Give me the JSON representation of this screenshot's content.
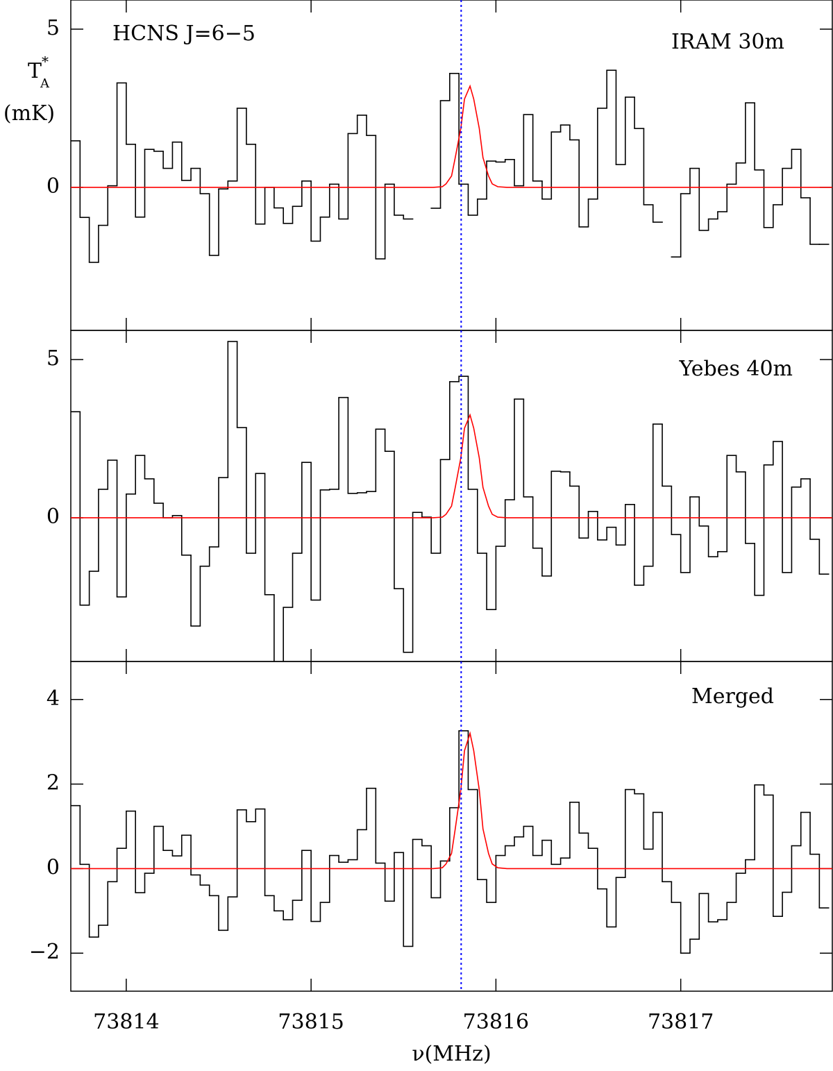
{
  "chart_data": [
    {
      "type": "step",
      "title": "HCNS J=6−5",
      "ylabel": {
        "symbol": "T",
        "superscript": "*",
        "subscript": "A",
        "unit": "(mK)"
      },
      "xlim": [
        73813.7,
        73817.82
      ],
      "xticks": [
        73814,
        73815,
        73816,
        73817
      ],
      "ylim": [
        -4.52,
        5.92
      ],
      "yticks": [
        0,
        5
      ],
      "vline_x": 73815.812,
      "vline_color": "#0000ff",
      "x": [
        73813.725,
        73813.775,
        73813.825,
        73813.875,
        73813.925,
        73813.975,
        73814.025,
        73814.075,
        73814.125,
        73814.175,
        73814.225,
        73814.275,
        73814.325,
        73814.375,
        73814.425,
        73814.475,
        73814.525,
        73814.575,
        73814.625,
        73814.675,
        73814.725,
        73814.775,
        73814.825,
        73814.875,
        73814.925,
        73814.975,
        73815.025,
        73815.075,
        73815.125,
        73815.175,
        73815.225,
        73815.275,
        73815.325,
        73815.375,
        73815.425,
        73815.475,
        73815.525,
        73815.575,
        73815.625,
        73815.675,
        73815.725,
        73815.775,
        73815.825,
        73815.875,
        73815.925,
        73815.975,
        73816.025,
        73816.075,
        73816.125,
        73816.175,
        73816.225,
        73816.275,
        73816.325,
        73816.375,
        73816.425,
        73816.475,
        73816.525,
        73816.575,
        73816.625,
        73816.675,
        73816.725,
        73816.775,
        73816.825,
        73816.875,
        73816.925,
        73816.975,
        73817.025,
        73817.075,
        73817.125,
        73817.175,
        73817.225,
        73817.275,
        73817.325,
        73817.375,
        73817.425,
        73817.475,
        73817.525,
        73817.575,
        73817.625,
        73817.675,
        73817.725,
        73817.775
      ],
      "series": [
        {
          "name": "IRAM 30m",
          "color": "#ff0000",
          "line_color": "#000000",
          "values": [
            1.47,
            -0.95,
            -2.37,
            -1.2,
            0.05,
            3.3,
            1.36,
            -0.94,
            1.2,
            1.14,
            0.6,
            1.43,
            0.22,
            0.6,
            -0.2,
            -2.15,
            -0.05,
            0.2,
            2.5,
            1.36,
            -1.16,
            0,
            -0.65,
            -1.14,
            -0.6,
            0.2,
            -1.7,
            -0.94,
            0.1,
            -1.0,
            1.7,
            2.28,
            1.64,
            -2.26,
            0.1,
            -0.88,
            -1.0,
            null,
            null,
            -0.66,
            2.74,
            3.6,
            0.1,
            -0.88,
            -0.37,
            0.83,
            0.8,
            0.88,
            0.05,
            2.3,
            0.2,
            -0.37,
            1.75,
            1.97,
            1.5,
            -1.25,
            -0.37,
            2.5,
            3.7,
            0.72,
            2.85,
            1.86,
            -0.55,
            -1.1,
            null,
            -2.2,
            -0.2,
            0.6,
            -1.36,
            -1.0,
            -0.77,
            0.1,
            0.77,
            2.67,
            0.55,
            -1.27,
            -0.55,
            0.6,
            1.2,
            -0.33,
            -1.8,
            -1.8
          ]
        },
        {
          "color": "#ff0000",
          "x": [
            73813.7,
            73815.66,
            73815.71,
            73815.73,
            73815.76,
            73815.78,
            73815.81,
            73815.83,
            73815.86,
            73815.88,
            73815.91,
            73815.93,
            73815.96,
            73815.98,
            73816.01,
            73816.06,
            73817.82
          ],
          "values": [
            0,
            0,
            0.02,
            0.11,
            0.36,
            0.94,
            1.86,
            2.79,
            3.2,
            2.79,
            1.86,
            0.94,
            0.36,
            0.11,
            0.02,
            0,
            0
          ]
        }
      ]
    },
    {
      "type": "step",
      "xlim": [
        73813.7,
        73817.82
      ],
      "xticks": [
        73814,
        73815,
        73816,
        73817
      ],
      "ylim": [
        -4.54,
        5.92
      ],
      "yticks": [
        0,
        5
      ],
      "vline_x": 73815.812,
      "vline_color": "#0000ff",
      "x": [
        73813.725,
        73813.775,
        73813.825,
        73813.875,
        73813.925,
        73813.975,
        73814.025,
        73814.075,
        73814.125,
        73814.175,
        73814.225,
        73814.275,
        73814.325,
        73814.375,
        73814.425,
        73814.475,
        73814.525,
        73814.575,
        73814.625,
        73814.675,
        73814.725,
        73814.775,
        73814.825,
        73814.875,
        73814.925,
        73814.975,
        73815.025,
        73815.075,
        73815.125,
        73815.175,
        73815.225,
        73815.275,
        73815.325,
        73815.375,
        73815.425,
        73815.475,
        73815.525,
        73815.575,
        73815.625,
        73815.675,
        73815.725,
        73815.775,
        73815.825,
        73815.875,
        73815.925,
        73815.975,
        73816.025,
        73816.075,
        73816.125,
        73816.175,
        73816.225,
        73816.275,
        73816.325,
        73816.375,
        73816.425,
        73816.475,
        73816.525,
        73816.575,
        73816.625,
        73816.675,
        73816.725,
        73816.775,
        73816.825,
        73816.875,
        73816.925,
        73816.975,
        73817.025,
        73817.075,
        73817.125,
        73817.175,
        73817.225,
        73817.275,
        73817.325,
        73817.375,
        73817.425,
        73817.475,
        73817.525,
        73817.575,
        73817.625,
        73817.675,
        73817.725,
        73817.775
      ],
      "series": [
        {
          "name": "Yebes 40m",
          "color": "#ff0000",
          "line_color": "#000000",
          "values": [
            3.35,
            -2.76,
            -1.69,
            0.9,
            1.82,
            -2.5,
            0.75,
            1.97,
            1.23,
            0.46,
            0,
            0.07,
            -1.18,
            -3.42,
            -1.53,
            -0.92,
            1.27,
            5.57,
            2.85,
            -1.12,
            1.4,
            -2.43,
            -4.6,
            -2.83,
            -1.12,
            1.75,
            -2.6,
            0.88,
            0.9,
            3.8,
            0.77,
            0.79,
            0.83,
            2.8,
            2.1,
            -2.24,
            -4.25,
            0.17,
            0.02,
            -1.12,
            1.84,
            4.3,
            4.47,
            0.9,
            -1.12,
            -2.9,
            -0.9,
            0.57,
            3.75,
            0.66,
            -0.96,
            -1.84,
            1.47,
            1.45,
            1.0,
            -0.64,
            0.2,
            -0.7,
            -0.3,
            -0.86,
            0.42,
            -2.13,
            -1.53,
            2.96,
            1.0,
            -0.53,
            -1.73,
            0.66,
            -0.26,
            -1.23,
            -1.07,
            1.97,
            1.45,
            -0.81,
            -2.45,
            1.67,
            2.41,
            -1.73,
            0.97,
            1.23,
            -0.68,
            -1.78
          ]
        },
        {
          "color": "#ff0000",
          "x": [
            73813.7,
            73815.66,
            73815.71,
            73815.73,
            73815.76,
            73815.78,
            73815.81,
            73815.83,
            73815.86,
            73815.88,
            73815.91,
            73815.93,
            73815.96,
            73815.98,
            73816.01,
            73816.06,
            73817.82
          ],
          "values": [
            0,
            0,
            0.02,
            0.11,
            0.37,
            0.96,
            1.89,
            2.83,
            3.25,
            2.83,
            1.89,
            0.96,
            0.37,
            0.11,
            0.02,
            0,
            0
          ]
        }
      ]
    },
    {
      "type": "step",
      "xlabel": "ν(MHz)",
      "xlim": [
        73813.7,
        73817.82
      ],
      "xticks": [
        73814,
        73815,
        73816,
        73817
      ],
      "ylim": [
        -2.9,
        4.9
      ],
      "yticks": [
        {
          "value": -2,
          "label": "−2"
        },
        0,
        2,
        4
      ],
      "vline_x": 73815.812,
      "vline_color": "#0000ff",
      "x": [
        73813.725,
        73813.775,
        73813.825,
        73813.875,
        73813.925,
        73813.975,
        73814.025,
        73814.075,
        73814.125,
        73814.175,
        73814.225,
        73814.275,
        73814.325,
        73814.375,
        73814.425,
        73814.475,
        73814.525,
        73814.575,
        73814.625,
        73814.675,
        73814.725,
        73814.775,
        73814.825,
        73814.875,
        73814.925,
        73814.975,
        73815.025,
        73815.075,
        73815.125,
        73815.175,
        73815.225,
        73815.275,
        73815.325,
        73815.375,
        73815.425,
        73815.475,
        73815.525,
        73815.575,
        73815.625,
        73815.675,
        73815.725,
        73815.775,
        73815.825,
        73815.875,
        73815.925,
        73815.975,
        73816.025,
        73816.075,
        73816.125,
        73816.175,
        73816.225,
        73816.275,
        73816.325,
        73816.375,
        73816.425,
        73816.475,
        73816.525,
        73816.575,
        73816.625,
        73816.675,
        73816.725,
        73816.775,
        73816.825,
        73816.875,
        73816.925,
        73816.975,
        73817.025,
        73817.075,
        73817.125,
        73817.175,
        73817.225,
        73817.275,
        73817.325,
        73817.375,
        73817.425,
        73817.475,
        73817.525,
        73817.575,
        73817.625,
        73817.675,
        73817.725,
        73817.775
      ],
      "series": [
        {
          "name": "Merged",
          "color": "#ff0000",
          "line_color": "#000000",
          "values": [
            1.49,
            0.1,
            -1.62,
            -1.34,
            -0.31,
            0.48,
            1.36,
            -0.57,
            -0.11,
            1.0,
            0.43,
            0.3,
            0.79,
            -0.15,
            -0.39,
            -0.64,
            -1.46,
            -0.67,
            1.39,
            1.11,
            1.41,
            -0.64,
            -1.0,
            -1.21,
            -0.75,
            0.43,
            -1.25,
            -0.8,
            0.31,
            0.15,
            0.21,
            0.92,
            1.9,
            0.13,
            -0.77,
            0.38,
            -1.84,
            0.69,
            0.54,
            -0.69,
            0.18,
            1.44,
            3.26,
            1.87,
            -0.26,
            -0.8,
            0.31,
            0.54,
            0.75,
            1.0,
            0.31,
            0.67,
            0.1,
            0.25,
            1.57,
            0.84,
            0.48,
            -0.48,
            -1.38,
            -0.21,
            1.87,
            1.77,
            0.46,
            1.33,
            -0.31,
            -0.8,
            -2.0,
            -1.67,
            -0.59,
            -1.26,
            -1.21,
            -0.8,
            -0.11,
            0.21,
            1.98,
            1.74,
            -1.13,
            -0.56,
            0.54,
            1.33,
            0.34,
            -0.93
          ]
        },
        {
          "color": "#ff0000",
          "x": [
            73813.7,
            73815.66,
            73815.71,
            73815.73,
            73815.76,
            73815.78,
            73815.81,
            73815.83,
            73815.86,
            73815.88,
            73815.91,
            73815.93,
            73815.96,
            73815.98,
            73816.01,
            73816.06,
            73817.82
          ],
          "values": [
            0,
            0,
            0.02,
            0.11,
            0.36,
            0.94,
            1.86,
            2.79,
            3.2,
            2.79,
            1.86,
            0.94,
            0.36,
            0.11,
            0.02,
            0,
            0
          ]
        }
      ]
    }
  ]
}
